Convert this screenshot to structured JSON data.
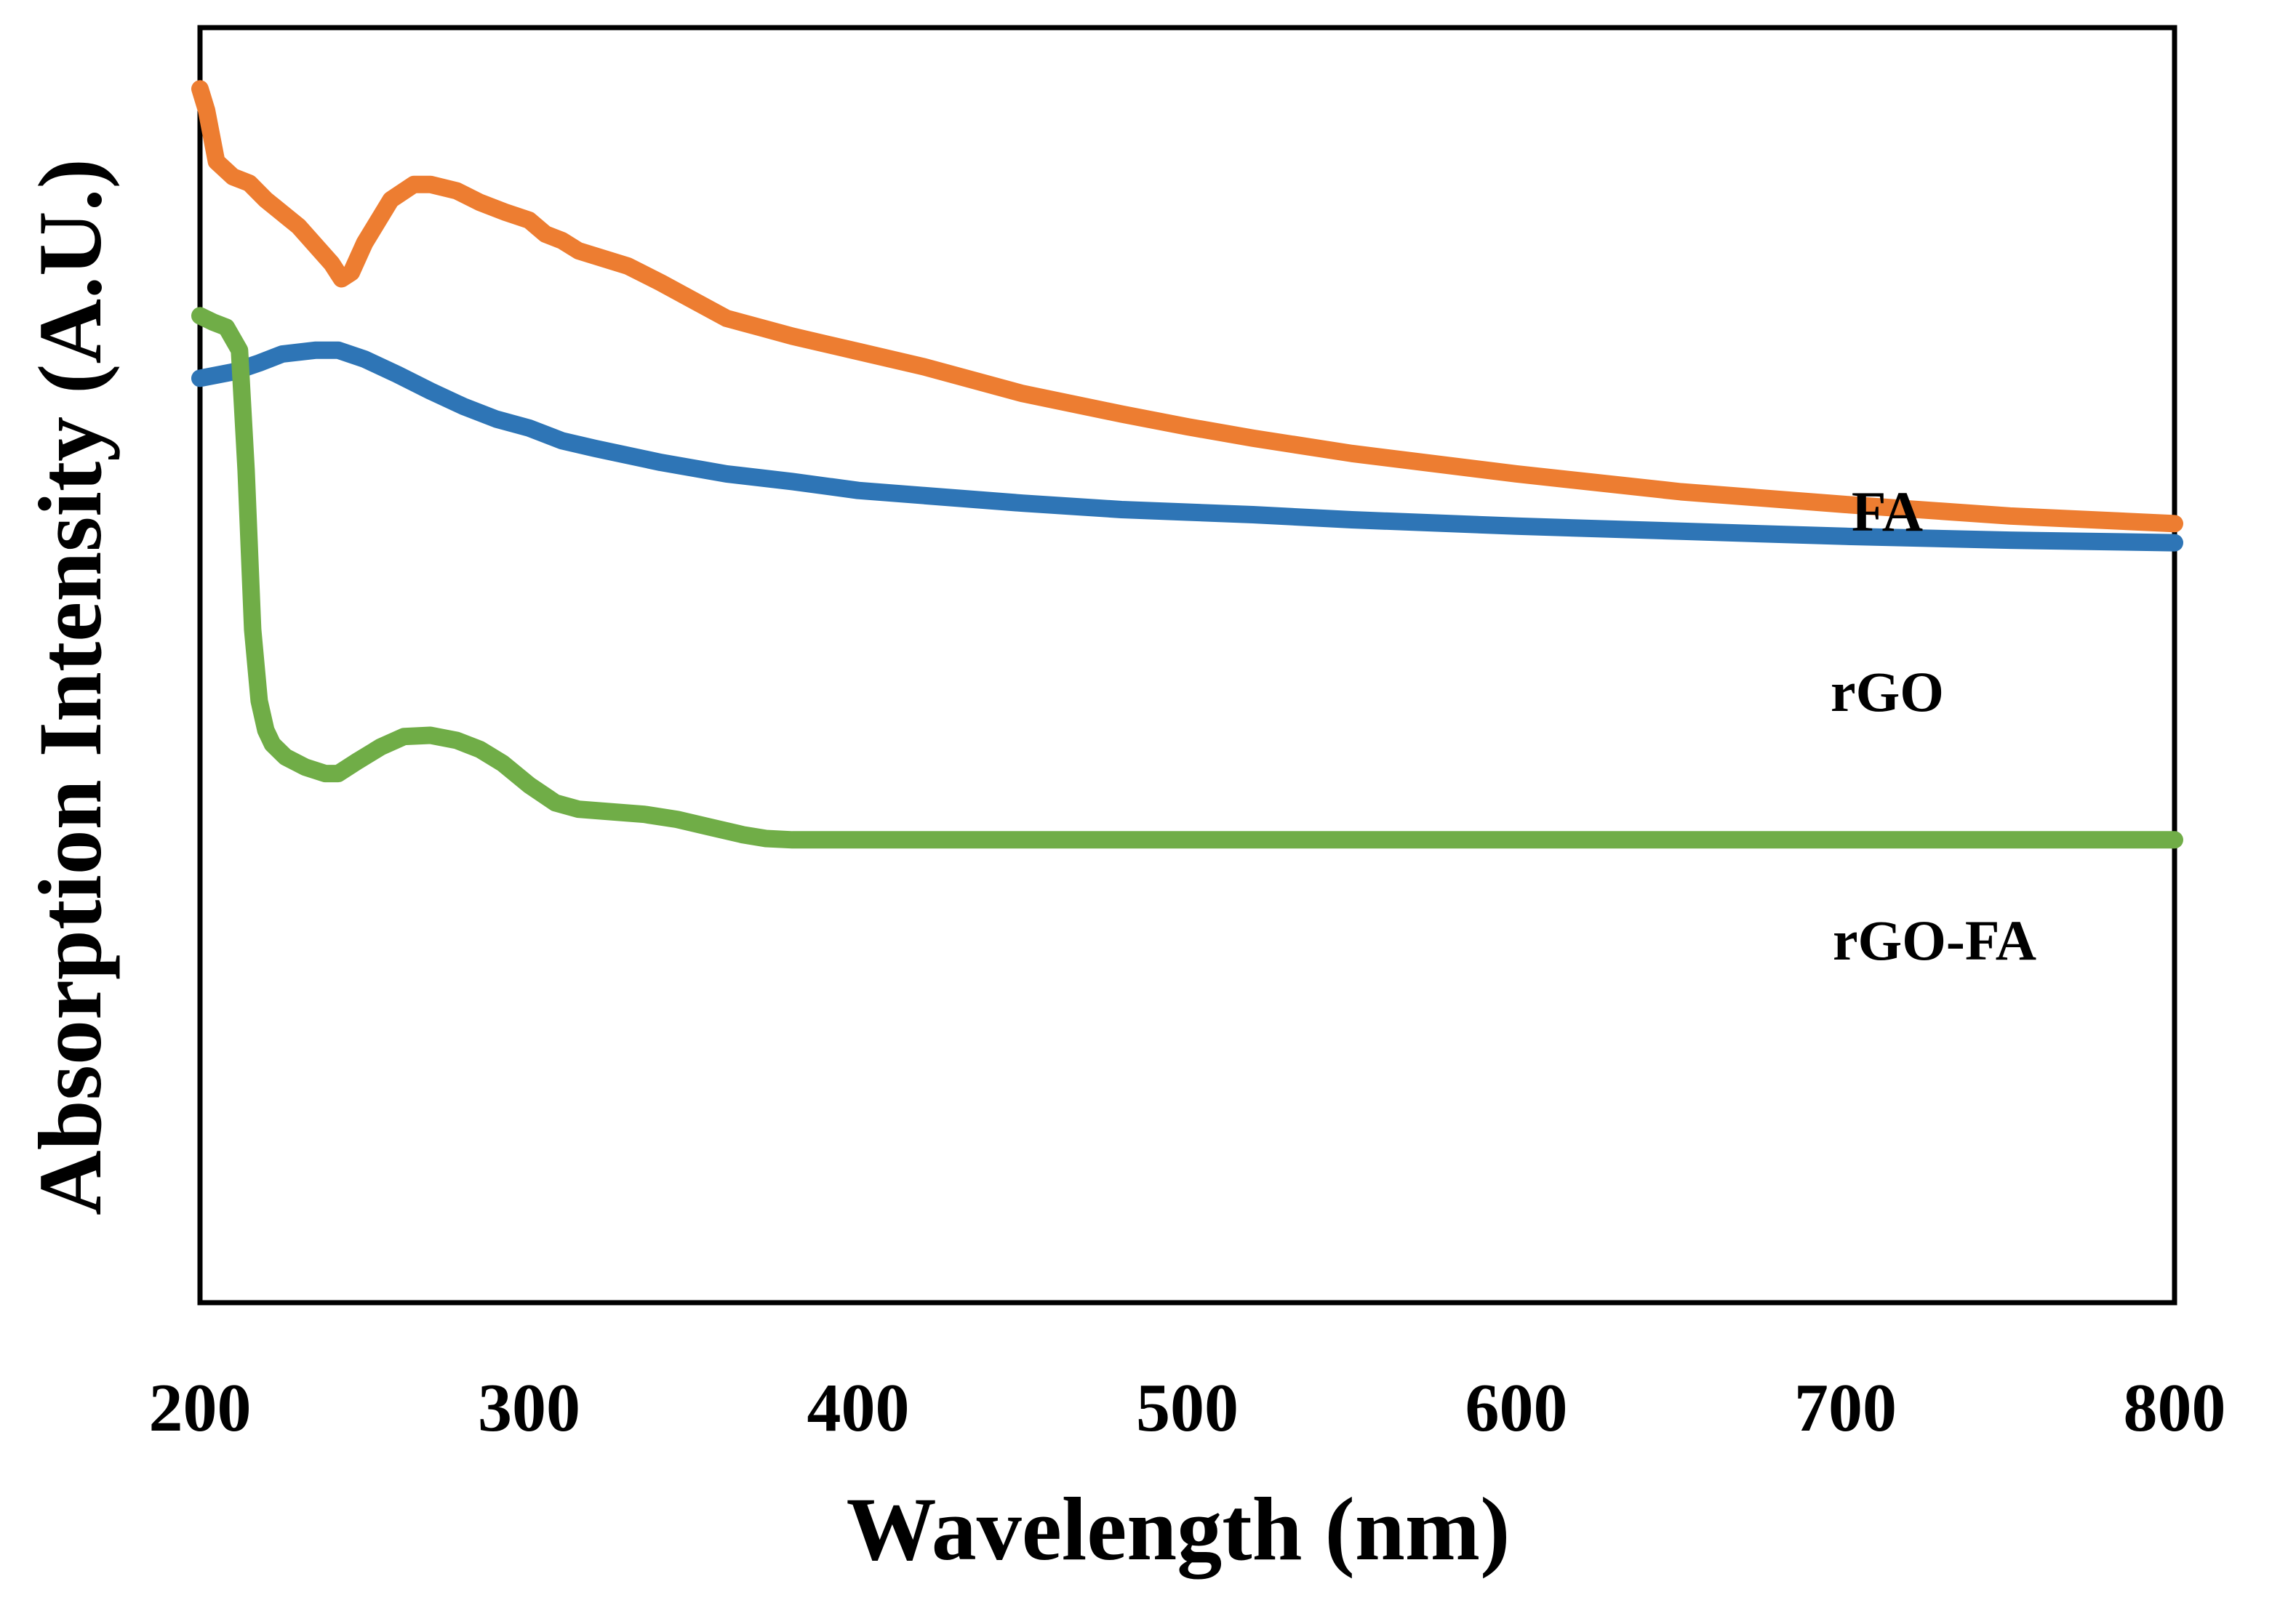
{
  "chart_data": {
    "type": "line",
    "title": "",
    "xlabel": "Wavelength (nm)",
    "ylabel": "Absorption Intensity (A.U.)",
    "xlim": [
      200,
      800
    ],
    "ylim": [
      0,
      100
    ],
    "xticks": [
      200,
      300,
      400,
      500,
      600,
      700,
      800
    ],
    "yticks": [],
    "grid": false,
    "legend": "inline labels at right",
    "series": [
      {
        "name": "FA",
        "color": "#ED7D31",
        "x": [
          200,
          202,
          205,
          210,
          215,
          220,
          230,
          240,
          243,
          246,
          250,
          258,
          265,
          270,
          278,
          285,
          293,
          300,
          305,
          310,
          315,
          320,
          330,
          340,
          350,
          360,
          370,
          380,
          400,
          420,
          450,
          480,
          500,
          520,
          550,
          600,
          650,
          700,
          750,
          800
        ],
        "y": [
          95.2,
          93.5,
          89.5,
          88.3,
          87.8,
          86.5,
          84.4,
          81.5,
          80.3,
          80.8,
          83.1,
          86.5,
          87.7,
          87.7,
          87.2,
          86.3,
          85.5,
          84.9,
          83.8,
          83.3,
          82.5,
          82.1,
          81.3,
          80.0,
          78.6,
          77.2,
          76.5,
          75.8,
          74.6,
          73.4,
          71.3,
          69.7,
          68.7,
          67.8,
          66.6,
          65.0,
          63.6,
          62.6,
          61.7,
          61.1
        ]
      },
      {
        "name": "rGO",
        "color": "#2E75B6",
        "x": [
          200,
          210,
          218,
          225,
          235,
          242,
          250,
          260,
          270,
          280,
          290,
          300,
          310,
          320,
          340,
          360,
          380,
          400,
          420,
          450,
          480,
          500,
          520,
          550,
          600,
          650,
          700,
          750,
          800
        ],
        "y": [
          72.5,
          73.0,
          73.7,
          74.4,
          74.7,
          74.7,
          74.0,
          72.8,
          71.5,
          70.3,
          69.3,
          68.6,
          67.6,
          67.0,
          65.9,
          65.0,
          64.4,
          63.7,
          63.3,
          62.7,
          62.2,
          62.0,
          61.8,
          61.4,
          60.9,
          60.5,
          60.1,
          59.8,
          59.6
        ]
      },
      {
        "name": "rGO-FA",
        "color": "#70AD47",
        "x": [
          200,
          204,
          208,
          212,
          214,
          216,
          218,
          220,
          222,
          226,
          232,
          238,
          242,
          248,
          255,
          262,
          270,
          278,
          285,
          292,
          300,
          308,
          315,
          325,
          335,
          345,
          355,
          365,
          372,
          380,
          400,
          450,
          500,
          550,
          600,
          650,
          700,
          750,
          800
        ],
        "y": [
          77.4,
          76.9,
          76.5,
          74.7,
          65.3,
          52.8,
          47.2,
          44.9,
          43.8,
          42.8,
          42.0,
          41.5,
          41.5,
          42.5,
          43.6,
          44.4,
          44.5,
          44.1,
          43.4,
          42.3,
          40.6,
          39.2,
          38.7,
          38.5,
          38.3,
          37.9,
          37.3,
          36.7,
          36.4,
          36.3,
          36.3,
          36.3,
          36.3,
          36.3,
          36.3,
          36.3,
          36.3,
          36.3,
          36.3
        ]
      }
    ]
  }
}
